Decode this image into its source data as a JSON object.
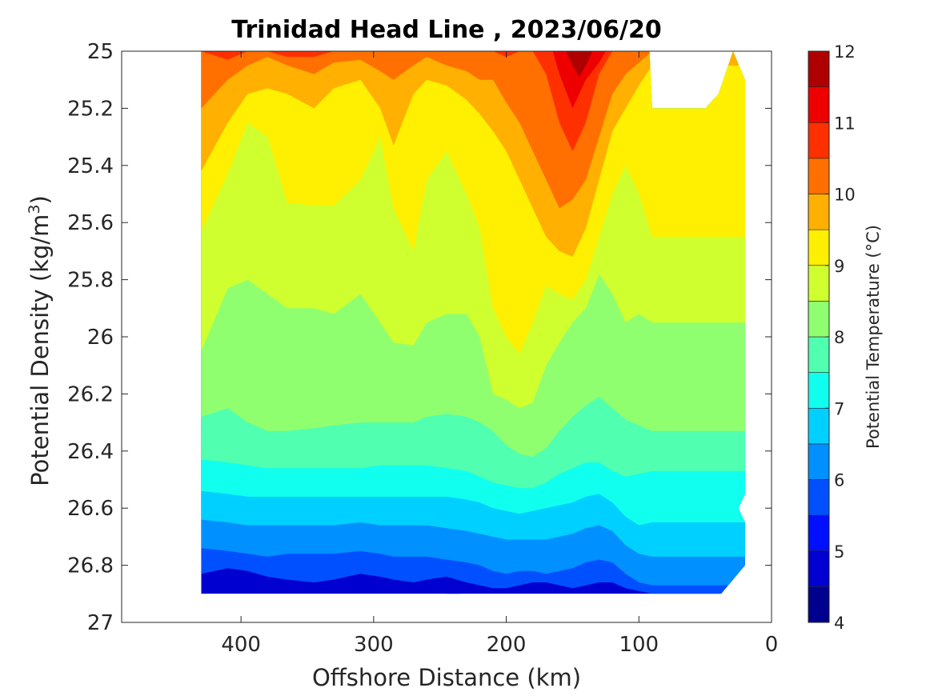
{
  "chart_data": {
    "type": "contourf",
    "title": "Trinidad Head Line , 2023/06/20",
    "xlabel": "Offshore Distance (km)",
    "ylabel_prefix": "Potential Density (kg/m",
    "ylabel_sup": "3",
    "ylabel_suffix": ")",
    "x_reversed": true,
    "y_reversed": true,
    "xlim": [
      0,
      490
    ],
    "ylim": [
      25,
      27
    ],
    "xticks": [
      400,
      300,
      200,
      100,
      0
    ],
    "xtick_labels": [
      "400",
      "300",
      "200",
      "100",
      "0"
    ],
    "yticks": [
      25,
      25.2,
      25.4,
      25.6,
      25.8,
      26,
      26.2,
      26.4,
      26.6,
      26.8,
      27
    ],
    "ytick_labels": [
      "25",
      "25.2",
      "25.4",
      "25.6",
      "25.8",
      "26",
      "26.2",
      "26.4",
      "26.6",
      "26.8",
      "27"
    ],
    "colorbar": {
      "label": "Potential Temperature (°C)",
      "range": [
        4,
        12
      ],
      "ticks": [
        4,
        5,
        6,
        7,
        8,
        9,
        10,
        11,
        12
      ],
      "tick_labels": [
        "4",
        "5",
        "6",
        "7",
        "8",
        "9",
        "10",
        "11",
        "12"
      ],
      "level_step": 0.5,
      "colors": [
        "#00008f",
        "#0000d0",
        "#0010ff",
        "#0050ff",
        "#0090ff",
        "#00d0ff",
        "#10ffef",
        "#50ffaf",
        "#90ff6f",
        "#d0ff2f",
        "#ffef00",
        "#ffb000",
        "#ff7000",
        "#ff3000",
        "#ef0000",
        "#af0000"
      ]
    },
    "isotherms": [
      {
        "level": 11.5,
        "x": [
          155,
          150,
          145,
          140,
          135
        ],
        "y": [
          25.0,
          25.05,
          25.09,
          25.05,
          25.0
        ]
      },
      {
        "level": 11,
        "x": [
          165,
          160,
          150,
          140,
          130,
          125
        ],
        "y": [
          25.0,
          25.08,
          25.2,
          25.1,
          25.04,
          25.0
        ]
      },
      {
        "level": 10.5,
        "x": [
          430,
          410,
          395,
          380,
          365,
          345,
          330,
          310,
          295,
          285,
          270,
          260,
          245,
          230,
          220,
          210,
          200,
          190,
          180,
          170,
          160,
          150,
          140,
          130,
          120,
          110,
          100,
          90
        ],
        "y": [
          25.0,
          25.03,
          25.0,
          25.0,
          25.02,
          25.02,
          25.0,
          25.0,
          25.0,
          25.0,
          25.0,
          25.0,
          25.0,
          25.0,
          25.0,
          25.0,
          25.02,
          25.0,
          25.0,
          25.08,
          25.25,
          25.35,
          25.25,
          25.08,
          25.0,
          25.0,
          25.0,
          25.0
        ]
      },
      {
        "level": 10,
        "x": [
          430,
          410,
          395,
          380,
          365,
          345,
          330,
          310,
          295,
          285,
          270,
          260,
          245,
          230,
          220,
          210,
          200,
          190,
          180,
          170,
          160,
          150,
          140,
          130,
          120,
          110,
          100,
          90
        ],
        "y": [
          25.2,
          25.1,
          25.05,
          25.02,
          25.05,
          25.08,
          25.04,
          25.03,
          25.07,
          25.1,
          25.05,
          25.02,
          25.05,
          25.07,
          25.1,
          25.1,
          25.18,
          25.25,
          25.35,
          25.45,
          25.55,
          25.52,
          25.45,
          25.3,
          25.15,
          25.08,
          25.04,
          25.0
        ]
      },
      {
        "level": 9.5,
        "x": [
          430,
          410,
          395,
          380,
          365,
          345,
          330,
          310,
          295,
          285,
          270,
          260,
          245,
          230,
          220,
          210,
          200,
          190,
          180,
          170,
          160,
          150,
          140,
          130,
          120,
          110,
          100,
          90
        ],
        "y": [
          25.42,
          25.25,
          25.15,
          25.13,
          25.15,
          25.2,
          25.13,
          25.1,
          25.2,
          25.33,
          25.15,
          25.1,
          25.12,
          25.17,
          25.22,
          25.28,
          25.35,
          25.45,
          25.55,
          25.65,
          25.7,
          25.72,
          25.62,
          25.45,
          25.28,
          25.2,
          25.12,
          25.05
        ]
      },
      {
        "level": 9,
        "x": [
          430,
          410,
          395,
          380,
          365,
          345,
          330,
          310,
          295,
          285,
          270,
          260,
          245,
          230,
          220,
          210,
          200,
          190,
          180,
          170,
          160,
          150,
          140,
          130,
          120,
          110,
          100,
          90
        ],
        "y": [
          25.63,
          25.43,
          25.25,
          25.3,
          25.53,
          25.54,
          25.54,
          25.45,
          25.3,
          25.55,
          25.7,
          25.45,
          25.35,
          25.5,
          25.62,
          25.9,
          26.0,
          26.06,
          25.95,
          25.82,
          25.85,
          25.87,
          25.8,
          25.65,
          25.5,
          25.4,
          25.5,
          25.65
        ]
      },
      {
        "level": 8.5,
        "x": [
          430,
          410,
          395,
          380,
          365,
          345,
          330,
          310,
          295,
          285,
          270,
          260,
          245,
          230,
          220,
          210,
          200,
          190,
          180,
          170,
          160,
          150,
          140,
          130,
          120,
          110,
          100,
          90
        ],
        "y": [
          26.05,
          25.83,
          25.8,
          25.85,
          25.9,
          25.9,
          25.92,
          25.85,
          25.95,
          26.02,
          26.03,
          25.95,
          25.92,
          25.92,
          26.0,
          26.2,
          26.22,
          26.25,
          26.23,
          26.1,
          26.02,
          25.95,
          25.9,
          25.78,
          25.85,
          25.95,
          25.92,
          25.95
        ]
      },
      {
        "level": 8,
        "x": [
          430,
          410,
          395,
          380,
          365,
          345,
          330,
          310,
          295,
          285,
          270,
          260,
          245,
          230,
          220,
          210,
          200,
          190,
          180,
          170,
          160,
          150,
          140,
          130,
          120,
          110,
          100,
          90
        ],
        "y": [
          26.28,
          26.25,
          26.3,
          26.33,
          26.33,
          26.32,
          26.31,
          26.3,
          26.3,
          26.3,
          26.3,
          26.28,
          26.27,
          26.28,
          26.3,
          26.33,
          26.38,
          26.41,
          26.42,
          26.39,
          26.33,
          26.28,
          26.24,
          26.21,
          26.25,
          26.29,
          26.31,
          26.33
        ]
      },
      {
        "level": 7.5,
        "x": [
          430,
          410,
          395,
          380,
          365,
          345,
          330,
          310,
          295,
          285,
          270,
          260,
          245,
          230,
          220,
          210,
          200,
          190,
          180,
          170,
          160,
          150,
          140,
          130,
          120,
          110,
          100,
          90
        ],
        "y": [
          26.43,
          26.44,
          26.45,
          26.46,
          26.46,
          26.46,
          26.46,
          26.46,
          26.45,
          26.45,
          26.45,
          26.45,
          26.46,
          26.47,
          26.49,
          26.51,
          26.52,
          26.53,
          26.53,
          26.51,
          26.48,
          26.46,
          26.44,
          26.44,
          26.47,
          26.49,
          26.48,
          26.47
        ]
      },
      {
        "level": 7,
        "x": [
          430,
          410,
          395,
          380,
          365,
          345,
          330,
          310,
          295,
          285,
          270,
          260,
          245,
          230,
          220,
          210,
          200,
          190,
          180,
          170,
          160,
          150,
          140,
          130,
          120,
          110,
          100,
          90
        ],
        "y": [
          26.54,
          26.55,
          26.56,
          26.56,
          26.56,
          26.56,
          26.56,
          26.56,
          26.56,
          26.56,
          26.56,
          26.56,
          26.56,
          26.57,
          26.58,
          26.6,
          26.61,
          26.62,
          26.61,
          26.6,
          26.59,
          26.58,
          26.56,
          26.55,
          26.58,
          26.63,
          26.66,
          26.65
        ]
      },
      {
        "level": 6.5,
        "x": [
          430,
          410,
          395,
          380,
          365,
          345,
          330,
          310,
          295,
          285,
          270,
          260,
          245,
          230,
          220,
          210,
          200,
          190,
          180,
          170,
          160,
          150,
          140,
          130,
          120,
          110,
          100,
          90
        ],
        "y": [
          26.64,
          26.65,
          26.66,
          26.66,
          26.66,
          26.66,
          26.66,
          26.65,
          26.66,
          26.66,
          26.66,
          26.66,
          26.67,
          26.68,
          26.69,
          26.7,
          26.71,
          26.71,
          26.71,
          26.71,
          26.7,
          26.69,
          26.67,
          26.66,
          26.68,
          26.73,
          26.76,
          26.77
        ]
      },
      {
        "level": 6,
        "x": [
          430,
          410,
          395,
          380,
          365,
          345,
          330,
          310,
          295,
          285,
          270,
          260,
          245,
          230,
          220,
          210,
          200,
          190,
          180,
          170,
          160,
          150,
          140,
          130,
          120,
          110,
          100,
          90
        ],
        "y": [
          26.74,
          26.75,
          26.76,
          26.77,
          26.76,
          26.76,
          26.76,
          26.75,
          26.76,
          26.77,
          26.77,
          26.77,
          26.78,
          26.79,
          26.8,
          26.82,
          26.83,
          26.82,
          26.82,
          26.83,
          26.82,
          26.81,
          26.79,
          26.78,
          26.79,
          26.83,
          26.86,
          26.87
        ]
      },
      {
        "level": 5.5,
        "x": [
          430,
          410,
          395,
          380,
          365,
          345,
          330,
          310,
          295,
          285,
          270,
          260,
          245,
          230,
          220,
          210,
          200,
          190,
          180,
          170,
          160,
          150,
          140,
          130,
          120,
          110,
          100,
          90
        ],
        "y": [
          26.83,
          26.81,
          26.82,
          26.84,
          26.85,
          26.86,
          26.85,
          26.83,
          26.84,
          26.85,
          26.86,
          26.85,
          26.84,
          26.86,
          26.87,
          26.88,
          26.88,
          26.87,
          26.86,
          26.86,
          26.87,
          26.88,
          26.87,
          26.86,
          26.86,
          26.88,
          26.89,
          26.9
        ]
      },
      {
        "level": 5,
        "x": [
          235,
          240,
          245
        ],
        "y": [
          26.9,
          26.99,
          26.9
        ]
      }
    ],
    "data_mask_polygon": {
      "x": [
        430,
        240,
        230,
        38,
        20,
        20,
        25,
        20,
        20,
        29,
        40,
        50,
        70,
        90,
        92,
        430
      ],
      "y": [
        26.9,
        26.9,
        26.9,
        26.9,
        26.8,
        26.65,
        26.6,
        26.55,
        25.1,
        25.0,
        25.15,
        25.2,
        25.2,
        25.2,
        25.0,
        25.0
      ]
    }
  }
}
